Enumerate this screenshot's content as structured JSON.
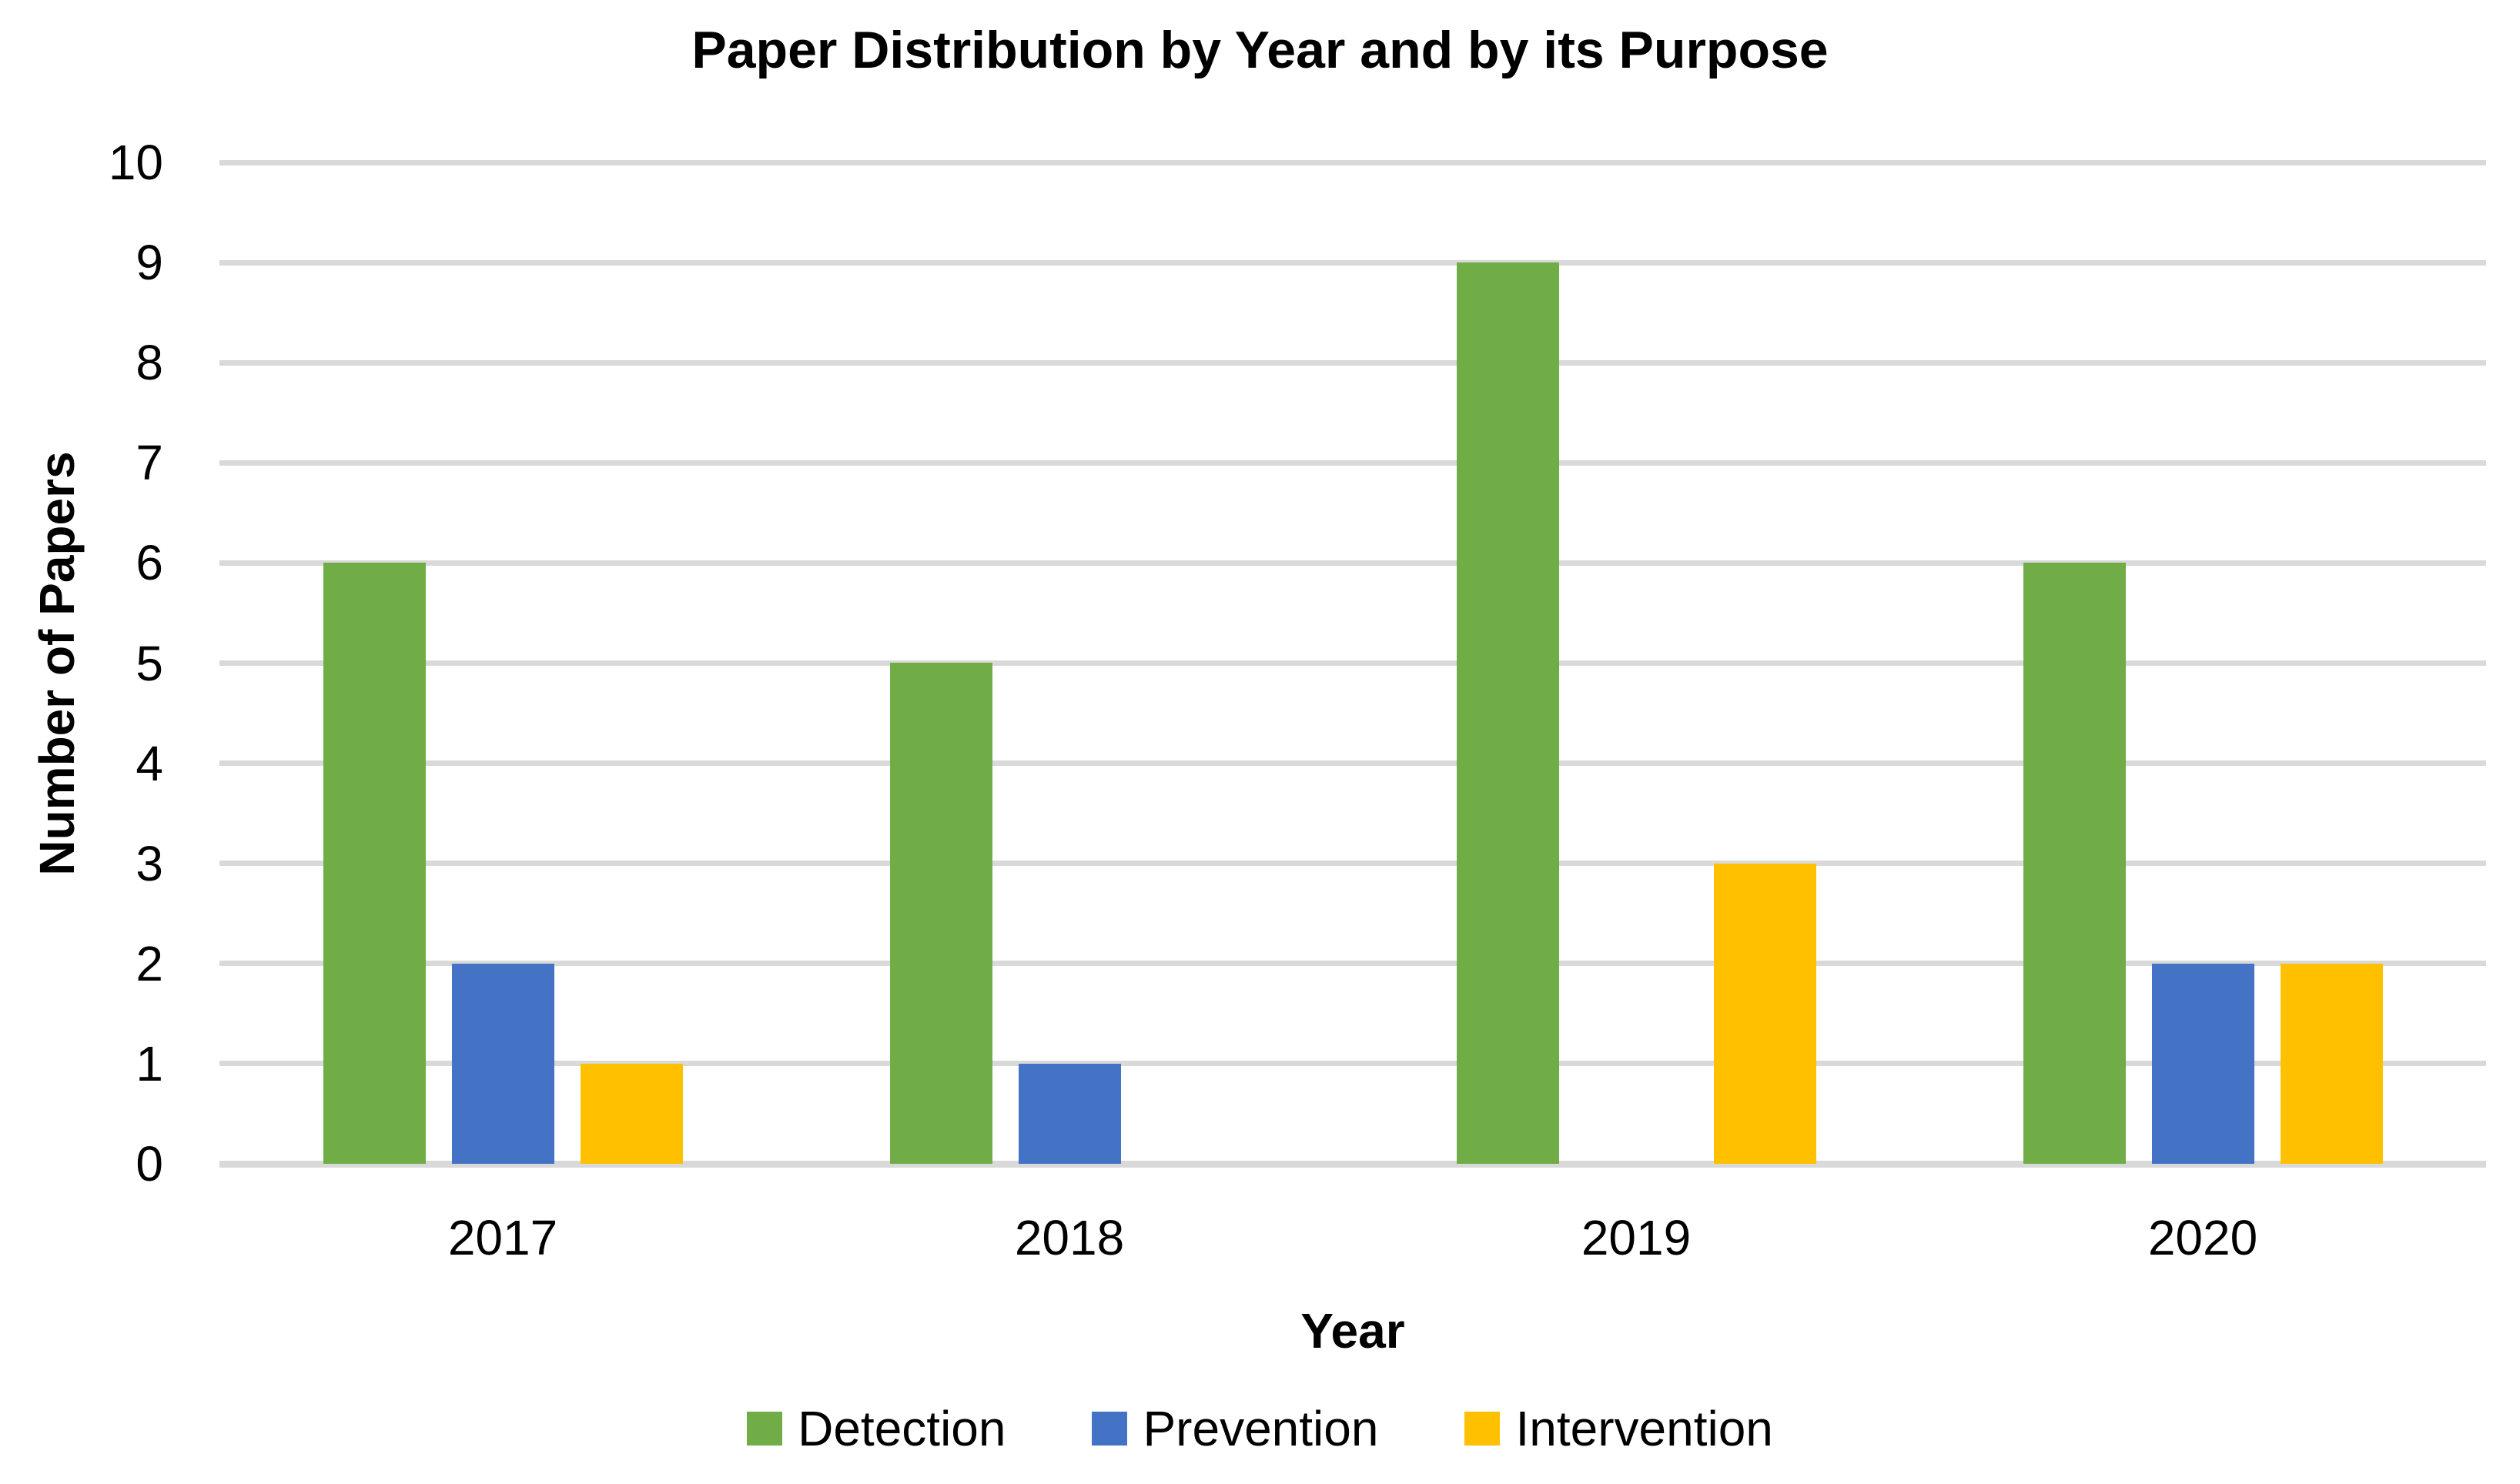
{
  "chart_data": {
    "type": "bar",
    "title": "Paper Distribution by Year and by its Purpose",
    "xlabel": "Year",
    "ylabel": "Number of Papers",
    "categories": [
      "2017",
      "2018",
      "2019",
      "2020"
    ],
    "series": [
      {
        "name": "Detection",
        "color": "#70AD47",
        "values": [
          6,
          5,
          9,
          6
        ]
      },
      {
        "name": "Prevention",
        "color": "#4472C4",
        "values": [
          2,
          1,
          0,
          2
        ]
      },
      {
        "name": "Intervention",
        "color": "#FFC000",
        "values": [
          1,
          0,
          3,
          2
        ]
      }
    ],
    "ylim": [
      0,
      10
    ],
    "ytick_step": 1,
    "yticks": [
      0,
      1,
      2,
      3,
      4,
      5,
      6,
      7,
      8,
      9,
      10
    ],
    "grid": true,
    "gridline_color": "#D9D9D9",
    "legend_position": "bottom",
    "background": "#FFFFFF",
    "text_color": "#000000"
  }
}
